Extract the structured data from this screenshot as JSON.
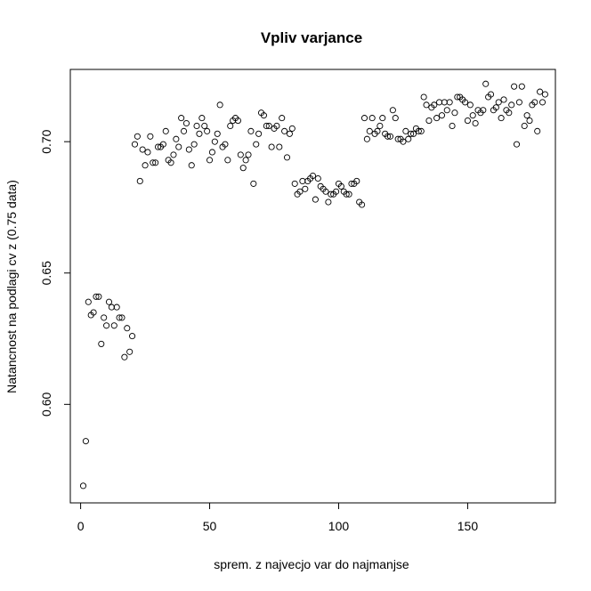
{
  "chart_data": {
    "type": "scatter",
    "title": "Vpliv varjance",
    "xlabel": "sprem. z najvecjo var do najmanjse",
    "ylabel": "Natancnost na podlagi cv z (0.75 data)",
    "xlim": [
      -4,
      184
    ],
    "ylim": [
      0.5625,
      0.7275
    ],
    "x_ticks": [
      0,
      50,
      100,
      150
    ],
    "y_ticks": [
      0.6,
      0.65,
      0.7
    ],
    "x_tick_labels": [
      "0",
      "50",
      "100",
      "150"
    ],
    "y_tick_labels": [
      "0.60",
      "0.65",
      "0.70"
    ],
    "marker": "open-circle",
    "grid": false,
    "x": [
      1,
      2,
      3,
      4,
      5,
      6,
      7,
      8,
      9,
      10,
      11,
      12,
      13,
      14,
      15,
      16,
      17,
      18,
      19,
      20,
      21,
      22,
      23,
      24,
      25,
      26,
      27,
      28,
      29,
      30,
      31,
      32,
      33,
      34,
      35,
      36,
      37,
      38,
      39,
      40,
      41,
      42,
      43,
      44,
      45,
      46,
      47,
      48,
      49,
      50,
      51,
      52,
      53,
      54,
      55,
      56,
      57,
      58,
      59,
      60,
      61,
      62,
      63,
      64,
      65,
      66,
      67,
      68,
      69,
      70,
      71,
      72,
      73,
      74,
      75,
      76,
      77,
      78,
      79,
      80,
      81,
      82,
      83,
      84,
      85,
      86,
      87,
      88,
      89,
      90,
      91,
      92,
      93,
      94,
      95,
      96,
      97,
      98,
      99,
      100,
      101,
      102,
      103,
      104,
      105,
      106,
      107,
      108,
      109,
      110,
      111,
      112,
      113,
      114,
      115,
      116,
      117,
      118,
      119,
      120,
      121,
      122,
      123,
      124,
      125,
      126,
      127,
      128,
      129,
      130,
      131,
      132,
      133,
      134,
      135,
      136,
      137,
      138,
      139,
      140,
      141,
      142,
      143,
      144,
      145,
      146,
      147,
      148,
      149,
      150,
      151,
      152,
      153,
      154,
      155,
      156,
      157,
      158,
      159,
      160,
      161,
      162,
      163,
      164,
      165,
      166,
      167,
      168,
      169,
      170,
      171,
      172,
      173,
      174,
      175,
      176,
      177,
      178,
      179,
      180
    ],
    "y": [
      0.569,
      0.586,
      0.639,
      0.634,
      0.635,
      0.641,
      0.641,
      0.623,
      0.633,
      0.63,
      0.639,
      0.637,
      0.63,
      0.637,
      0.633,
      0.633,
      0.618,
      0.629,
      0.62,
      0.626,
      0.699,
      0.702,
      0.685,
      0.697,
      0.691,
      0.696,
      0.702,
      0.692,
      0.692,
      0.698,
      0.698,
      0.699,
      0.704,
      0.693,
      0.692,
      0.695,
      0.701,
      0.698,
      0.709,
      0.704,
      0.707,
      0.697,
      0.691,
      0.699,
      0.706,
      0.703,
      0.709,
      0.706,
      0.704,
      0.693,
      0.696,
      0.7,
      0.703,
      0.714,
      0.698,
      0.699,
      0.693,
      0.706,
      0.708,
      0.709,
      0.708,
      0.695,
      0.69,
      0.693,
      0.695,
      0.704,
      0.684,
      0.699,
      0.703,
      0.711,
      0.71,
      0.706,
      0.706,
      0.698,
      0.705,
      0.706,
      0.698,
      0.709,
      0.704,
      0.694,
      0.703,
      0.705,
      0.684,
      0.68,
      0.681,
      0.685,
      0.682,
      0.685,
      0.686,
      0.687,
      0.678,
      0.686,
      0.683,
      0.682,
      0.681,
      0.677,
      0.68,
      0.68,
      0.681,
      0.684,
      0.683,
      0.681,
      0.68,
      0.68,
      0.684,
      0.684,
      0.685,
      0.677,
      0.676,
      0.709,
      0.701,
      0.704,
      0.709,
      0.703,
      0.704,
      0.706,
      0.709,
      0.703,
      0.702,
      0.702,
      0.712,
      0.709,
      0.701,
      0.701,
      0.7,
      0.704,
      0.701,
      0.703,
      0.703,
      0.705,
      0.704,
      0.704,
      0.717,
      0.714,
      0.708,
      0.713,
      0.714,
      0.709,
      0.715,
      0.71,
      0.715,
      0.712,
      0.715,
      0.706,
      0.711,
      0.717,
      0.717,
      0.716,
      0.715,
      0.708,
      0.714,
      0.71,
      0.707,
      0.712,
      0.711,
      0.712,
      0.722,
      0.717,
      0.718,
      0.712,
      0.713,
      0.715,
      0.709,
      0.716,
      0.712,
      0.711,
      0.714,
      0.721,
      0.699,
      0.715,
      0.721,
      0.706,
      0.71,
      0.708,
      0.714,
      0.715,
      0.704,
      0.719,
      0.715,
      0.718
    ]
  }
}
